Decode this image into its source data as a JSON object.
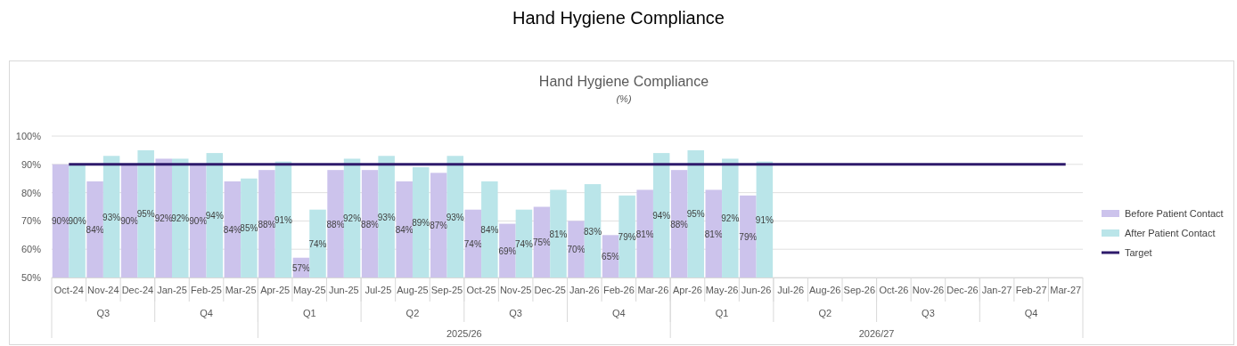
{
  "chart_data": {
    "type": "bar",
    "title": "Hand Hygiene Compliance",
    "subtitle": "(%)",
    "categories": [
      "Oct-24",
      "Nov-24",
      "Dec-24",
      "Jan-25",
      "Feb-25",
      "Mar-25",
      "Apr-25",
      "May-25",
      "Jun-25",
      "Jul-25",
      "Aug-25",
      "Sep-25",
      "Oct-25",
      "Nov-25",
      "Dec-25",
      "Jan-26",
      "Feb-26",
      "Mar-26",
      "Apr-26",
      "May-26",
      "Jun-26",
      "Jul-26",
      "Aug-26",
      "Sep-26",
      "Oct-26",
      "Nov-26",
      "Dec-26",
      "Jan-27",
      "Feb-27",
      "Mar-27"
    ],
    "series": [
      {
        "name": "Before Patient Contact",
        "color": "#ccc3ec",
        "values": [
          90,
          84,
          90,
          92,
          90,
          84,
          88,
          57,
          88,
          88,
          84,
          87,
          74,
          69,
          75,
          70,
          65,
          81,
          88,
          81,
          79,
          null,
          null,
          null,
          null,
          null,
          null,
          null,
          null,
          null
        ],
        "value_labels": [
          "90%",
          "84%",
          "90%",
          "92%",
          "90%",
          "84%",
          "88%",
          "57%",
          "88%",
          "88%",
          "84%",
          "87%",
          "74%",
          "69%",
          "75%",
          "70%",
          "65%",
          "81%",
          "88%",
          "81%",
          "79%",
          null,
          null,
          null,
          null,
          null,
          null,
          null,
          null,
          null
        ]
      },
      {
        "name": "After Patient Contact",
        "color": "#bae5e9",
        "values": [
          90,
          93,
          95,
          92,
          94,
          85,
          91,
          74,
          92,
          93,
          89,
          93,
          84,
          74,
          81,
          83,
          79,
          94,
          95,
          92,
          91,
          null,
          null,
          null,
          null,
          null,
          null,
          null,
          null,
          null
        ],
        "value_labels": [
          "90%",
          "93%",
          "95%",
          "92%",
          "94%",
          "85%",
          "91%",
          "74%",
          "92%",
          "93%",
          "89%",
          "93%",
          "84%",
          "74%",
          "81%",
          "83%",
          "79%",
          "94%",
          "95%",
          "92%",
          "91%",
          null,
          null,
          null,
          null,
          null,
          null,
          null,
          null,
          null
        ]
      },
      {
        "name": "Target",
        "type": "line",
        "color": "#2e1a6b",
        "values": [
          90,
          90,
          90,
          90,
          90,
          90,
          90,
          90,
          90,
          90,
          90,
          90,
          90,
          90,
          90,
          90,
          90,
          90,
          90,
          90,
          90,
          90,
          90,
          90,
          90,
          90,
          90,
          90,
          90,
          90
        ]
      }
    ],
    "ylim": [
      50,
      100
    ],
    "yticks": [
      {
        "value": 50,
        "label": "50%"
      },
      {
        "value": 60,
        "label": "60%"
      },
      {
        "value": 70,
        "label": "70%"
      },
      {
        "value": 80,
        "label": "80%"
      },
      {
        "value": 90,
        "label": "90%"
      },
      {
        "value": 100,
        "label": "100%"
      }
    ],
    "grid": "y",
    "legend": "right",
    "annotations": [
      "Hand Hygiene Compliance",
      "Q3",
      "Q4",
      "Q1",
      "Q2",
      "Q3",
      "Q4",
      "Q1",
      "Q2",
      "Q3",
      "Q4",
      "2025/26",
      "2026/27"
    ]
  }
}
